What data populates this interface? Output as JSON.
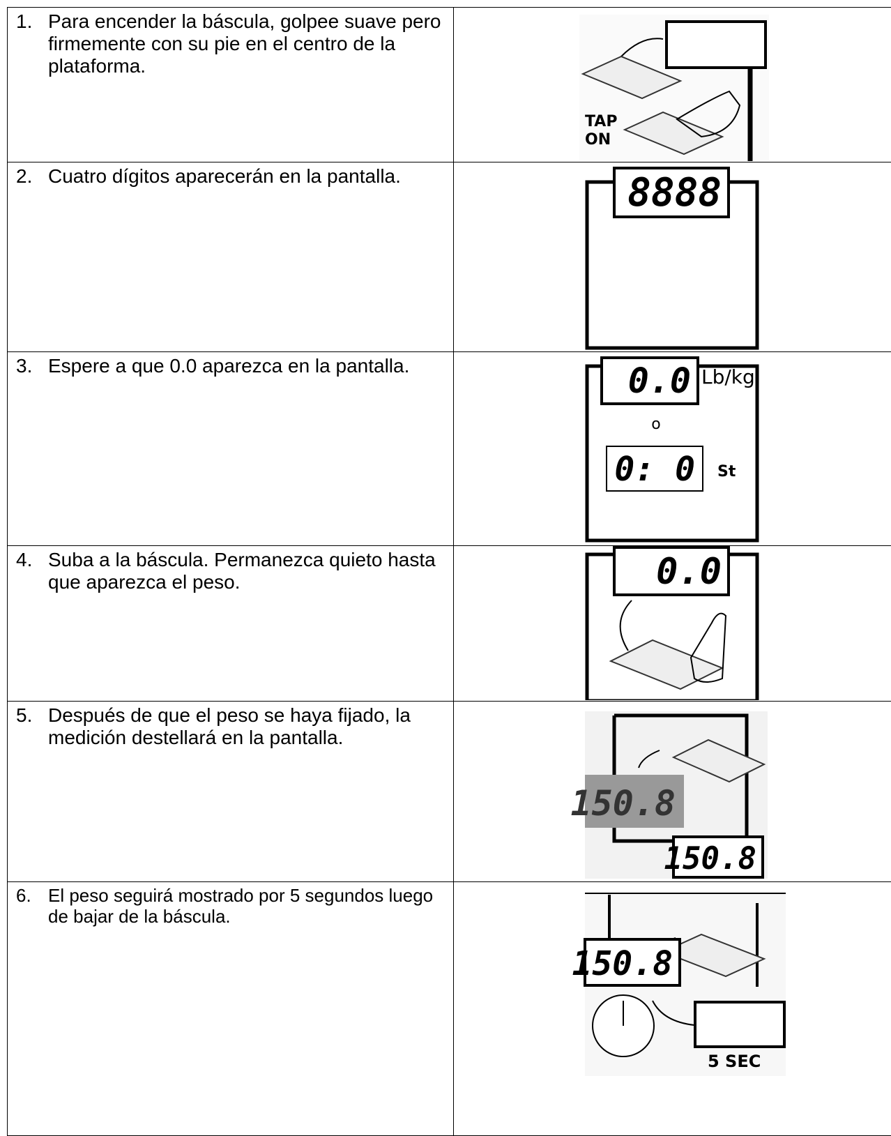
{
  "steps": [
    {
      "number": "1.",
      "text": "Para encender la báscula, golpee suave pero firmemente con su pie en el centro de la plataforma.",
      "figure": {
        "tap": "TAP",
        "on": "ON"
      }
    },
    {
      "number": "2.",
      "text": "Cuatro dígitos aparecerán en la pantalla.",
      "figure": {
        "display": "8888"
      }
    },
    {
      "number": "3.",
      "text": "Espere a que 0.0 aparezca en la pantalla.",
      "figure": {
        "display": "0.0",
        "unit": "Lb/kg",
        "or": "o",
        "display2": "0: 0",
        "unit2": "St"
      }
    },
    {
      "number": "4.",
      "text": "Suba a la báscula. Permanezca quieto hasta que aparezca el peso.",
      "figure": {
        "display": "0.0"
      }
    },
    {
      "number": "5.",
      "text": "Después de que el peso se haya fijado, la medición destellará en la pantalla.",
      "figure": {
        "flash": "150.8",
        "display": "150.8"
      }
    },
    {
      "number": "6.",
      "text": "El peso seguirá mostrado por 5 segundos luego de bajar de la báscula.",
      "figure": {
        "display": "150.8",
        "timer": "5 SEC"
      }
    }
  ]
}
